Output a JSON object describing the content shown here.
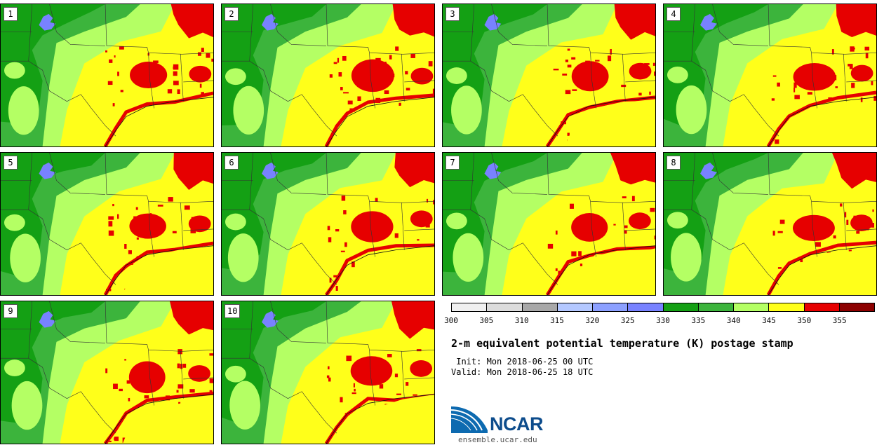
{
  "panels": [
    {
      "label": "1"
    },
    {
      "label": "2"
    },
    {
      "label": "3"
    },
    {
      "label": "4"
    },
    {
      "label": "5"
    },
    {
      "label": "6"
    },
    {
      "label": "7"
    },
    {
      "label": "8"
    },
    {
      "label": "9"
    },
    {
      "label": "10"
    }
  ],
  "colorbar": {
    "colors": [
      "#f0f0f0",
      "#dcdcdc",
      "#a8a8a8",
      "#b4c8ff",
      "#8ca0ff",
      "#7882ff",
      "#14a014",
      "#3cb43c",
      "#b4ff64",
      "#ffff1a",
      "#e60000",
      "#8c0000"
    ],
    "ticks": [
      "300",
      "305",
      "310",
      "315",
      "320",
      "325",
      "330",
      "335",
      "340",
      "345",
      "350",
      "355"
    ]
  },
  "title": "2-m equivalent potential temperature (K) postage stamp",
  "init_text": " Init: Mon 2018-06-25 00 UTC",
  "valid_text": "Valid: Mon 2018-06-25 18 UTC",
  "logo": {
    "name": "NCAR",
    "url": "ensemble.ucar.edu"
  },
  "colors": {
    "dark_green": "#14a014",
    "mid_green": "#3cb43c",
    "light_green": "#b4ff64",
    "yellow": "#ffff1a",
    "red": "#e60000",
    "blue": "#7882ff"
  }
}
